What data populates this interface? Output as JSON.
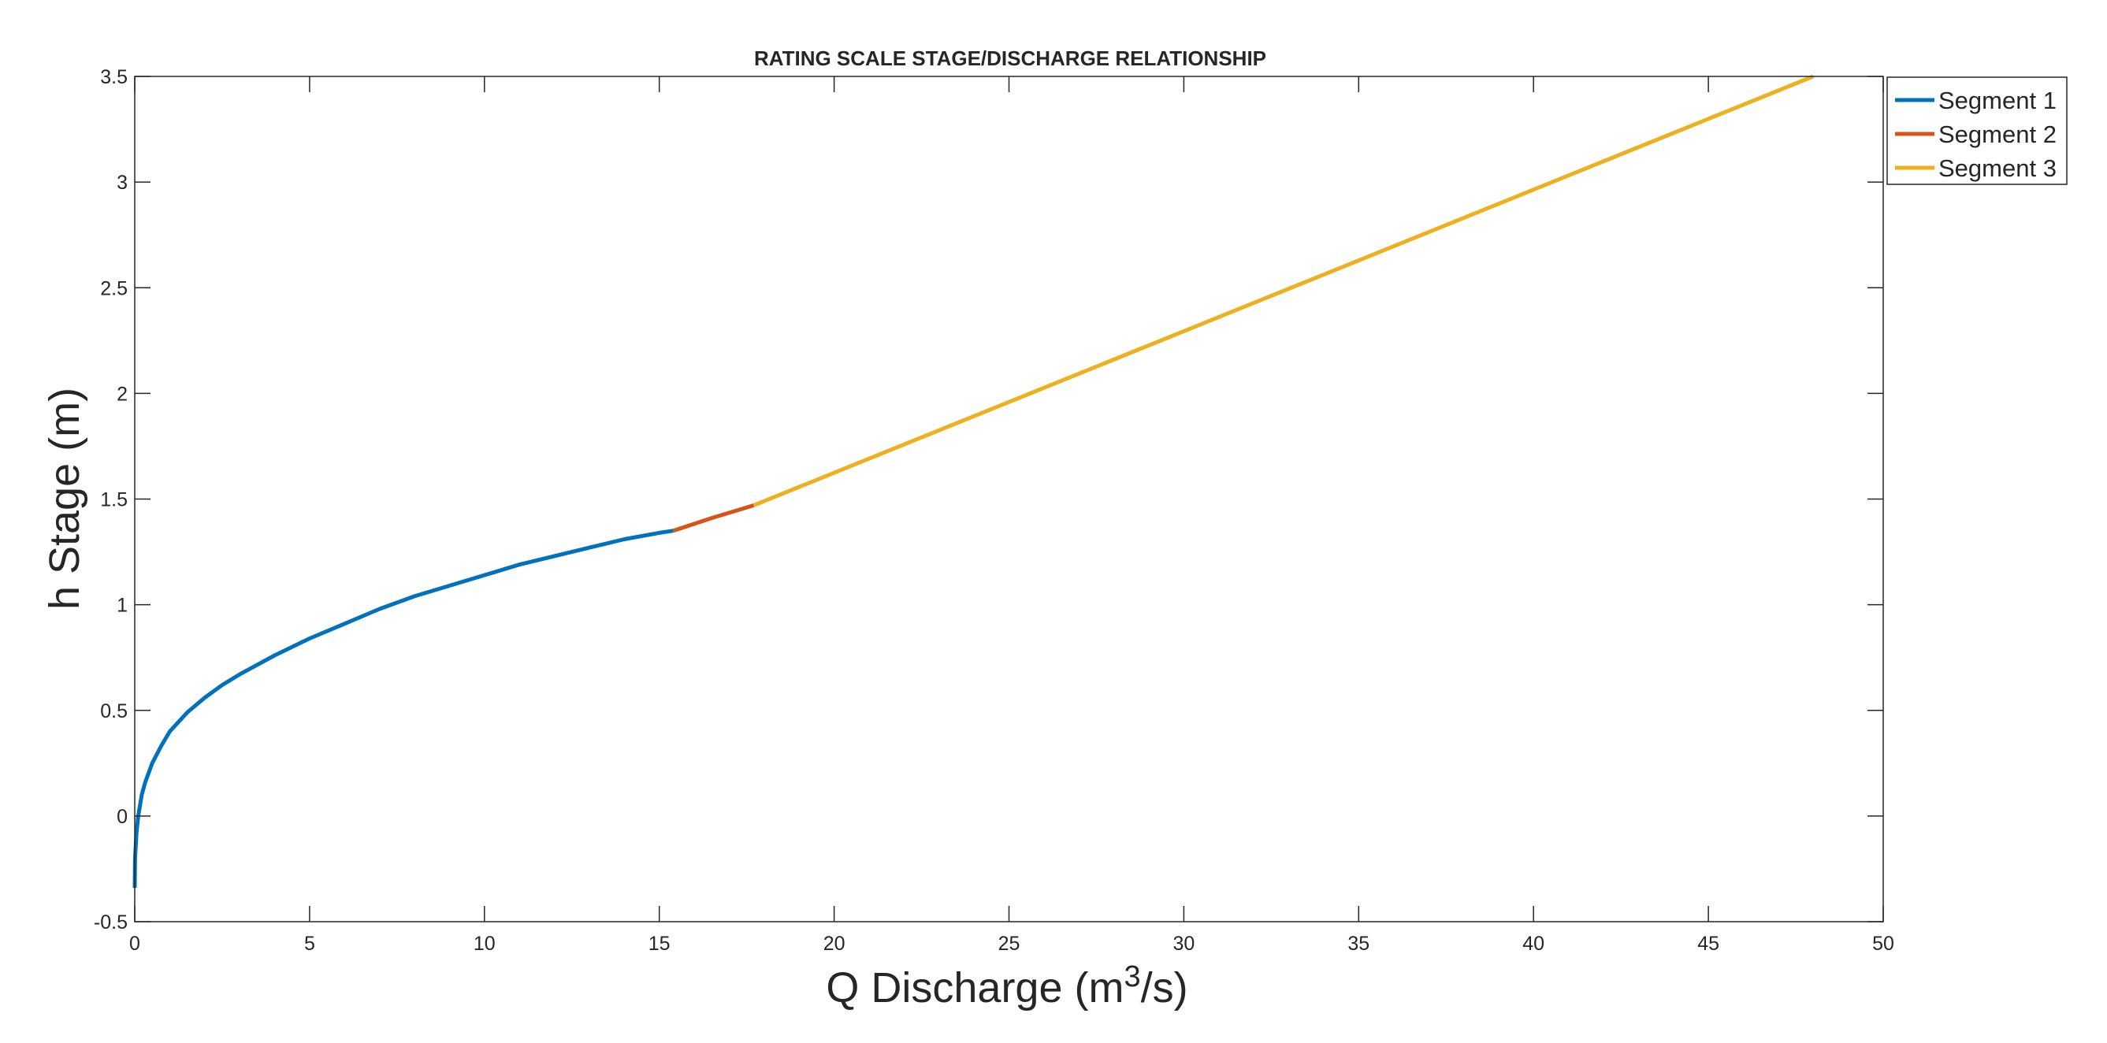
{
  "chart_data": {
    "type": "line",
    "title": "RATING SCALE   STAGE/DISCHARGE RELATIONSHIP",
    "xlabel": "Q   Discharge (m",
    "xlabel_sup": "3",
    "xlabel_tail": "/s)",
    "ylabel": "h   Stage (m)",
    "xlim": [
      0,
      50
    ],
    "ylim": [
      -0.5,
      3.5
    ],
    "xticks": [
      0,
      5,
      10,
      15,
      20,
      25,
      30,
      35,
      40,
      45,
      50
    ],
    "xtick_labels": [
      "0",
      "5",
      "10",
      "15",
      "20",
      "25",
      "30",
      "35",
      "40",
      "45",
      "50"
    ],
    "yticks": [
      -0.5,
      0,
      0.5,
      1,
      1.5,
      2,
      2.5,
      3,
      3.5
    ],
    "ytick_labels": [
      "-0.5",
      "0",
      "0.5",
      "1",
      "1.5",
      "2",
      "2.5",
      "3",
      "3.5"
    ],
    "grid": false,
    "legend_position": "outside-top-right",
    "series": [
      {
        "name": "Segment 1",
        "color": "#0072BD",
        "x": [
          0,
          0.01,
          0.05,
          0.1,
          0.2,
          0.3,
          0.5,
          0.75,
          1,
          1.5,
          2,
          2.5,
          3,
          4,
          5,
          6,
          7,
          8,
          9,
          10,
          11,
          12,
          13,
          14,
          15,
          15.4
        ],
        "y": [
          -0.34,
          -0.2,
          -0.08,
          0,
          0.1,
          0.16,
          0.25,
          0.33,
          0.4,
          0.49,
          0.56,
          0.62,
          0.67,
          0.76,
          0.84,
          0.91,
          0.98,
          1.04,
          1.09,
          1.14,
          1.19,
          1.23,
          1.27,
          1.31,
          1.34,
          1.35
        ]
      },
      {
        "name": "Segment 2",
        "color": "#D95319",
        "x": [
          15.4,
          16.5,
          17.7
        ],
        "y": [
          1.35,
          1.41,
          1.47
        ]
      },
      {
        "name": "Segment 3",
        "color": "#EDB120",
        "x": [
          17.7,
          48
        ],
        "y": [
          1.47,
          3.5
        ]
      }
    ]
  }
}
